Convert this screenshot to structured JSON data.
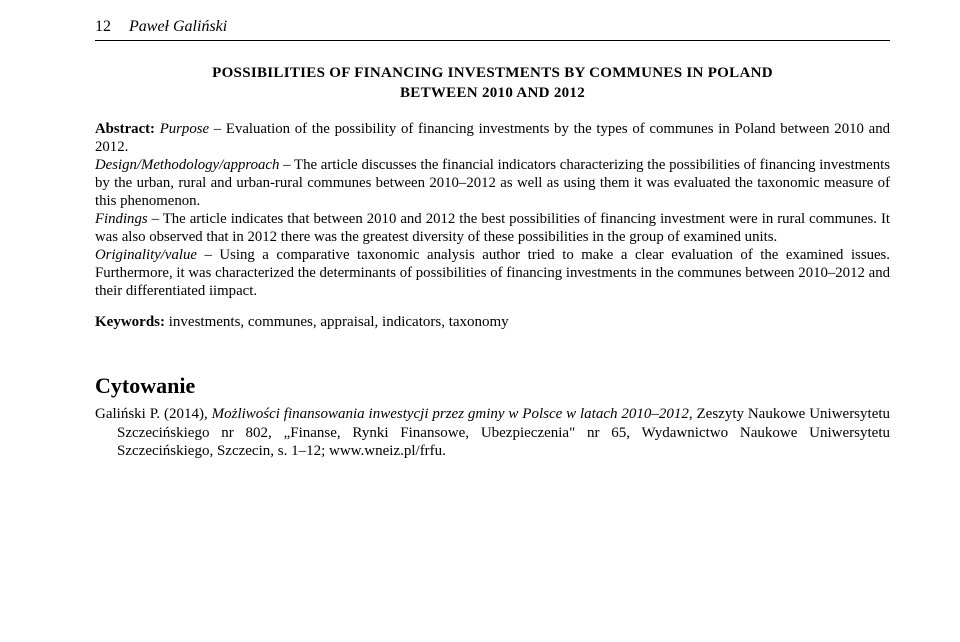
{
  "page_number": "12",
  "author_header": "Paweł Galiński",
  "title_line1": "POSSIBILITIES OF FINANCING INVESTMENTS BY COMMUNES IN POLAND",
  "title_line2": "BETWEEN 2010 AND 2012",
  "abstract": {
    "label": "Abstract:",
    "purpose_label": "Purpose",
    "purpose_text": " – Evaluation of the possibility of financing investments by the types of communes in Poland between 2010 and 2012.",
    "design_label": "Design/Methodology/approach",
    "design_text": " – The article discusses the financial indicators characterizing the possibilities of financing investments by the urban, rural and urban-rural communes between 2010–2012 as well as using them it was evaluated the taxonomic measure of this phenomenon.",
    "findings_label": "Findings",
    "findings_text": " – The article indicates that between 2010 and 2012 the best possibilities of financing investment were in rural communes. It was also observed that in 2012 there was the greatest diversity of these possibilities in the group of examined units.",
    "originality_label": "Originality/value",
    "originality_text": " – Using a comparative taxonomic analysis author tried to make a clear evaluation of the examined issues. Furthermore, it was characterized the determinants of possibilities of financing investments in the communes between 2010–2012 and their differentiated iimpact."
  },
  "keywords": {
    "label": "Keywords:",
    "text": " investments, communes, appraisal, indicators, taxonomy"
  },
  "citation_heading": "Cytowanie",
  "citation": {
    "author": "Galiński P. (2014), ",
    "title_italic": "Możliwości finansowania inwestycji przez gminy w Polsce w latach 2010–2012",
    "rest": ", Zeszyty Naukowe Uniwersytetu Szczecińskiego nr 802, „Finanse, Rynki Finansowe, Ubezpieczenia\" nr 65, Wydawnictwo Naukowe Uniwersytetu Szczecińskiego, Szczecin, s. 1–12; www.wneiz.pl/frfu."
  }
}
